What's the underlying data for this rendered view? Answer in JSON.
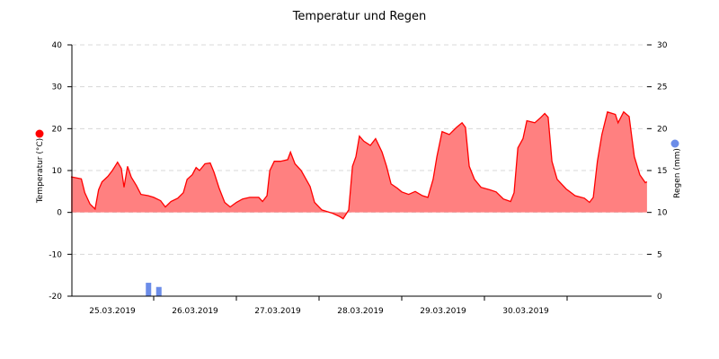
{
  "chart_data": {
    "type": "area",
    "title": "Temperatur und Regen",
    "ylabel": "Temperatur (°C)",
    "y2label": "Regen (mm)",
    "x_unit": "hours since 25.03.2019 00:00",
    "xlim": [
      0,
      167.5
    ],
    "ylim": [
      -20,
      40
    ],
    "y2lim": [
      0,
      30
    ],
    "yticks": [
      "-20",
      "-10",
      "0",
      "10",
      "20",
      "30",
      "40"
    ],
    "y2ticks": [
      "0",
      "5",
      "10",
      "15",
      "20",
      "25",
      "30"
    ],
    "xtick_labels": [
      "25.03.2019",
      "26.03.2019",
      "27.03.2019",
      "28.03.2019",
      "29.03.2019",
      "30.03.2019"
    ],
    "grid": true,
    "colors": {
      "temperature": "#ff0000",
      "temperature_fill": "#ff8080",
      "rain": "#6b8ce8"
    },
    "series": [
      {
        "name": "Temperatur",
        "hours": [
          0,
          3,
          4,
          5.5,
          7,
          8,
          9,
          10.7,
          12,
          13.5,
          14.6,
          15.4,
          16.4,
          17.5,
          19,
          20.3,
          22.4,
          24,
          26,
          27.4,
          29,
          31,
          32.6,
          33.7,
          35.2,
          36.3,
          37.3,
          38.9,
          40.4,
          41.5,
          43,
          44.6,
          46.2,
          48,
          49.8,
          51.9,
          54.5,
          55.6,
          56.9,
          57.7,
          59,
          60.8,
          62.9,
          63.7,
          65,
          66.8,
          69.4,
          70.7,
          72.8,
          75.9,
          78,
          79,
          80.6,
          81.7,
          82.7,
          83.7,
          85,
          86.9,
          88.4,
          90.3,
          91.6,
          92.9,
          94.7,
          96,
          98,
          99.9,
          102,
          103.6,
          105.1,
          106.2,
          107.7,
          109.8,
          111.9,
          113.5,
          114.5,
          115.6,
          117.1,
          119,
          121.6,
          123.4,
          125.5,
          127.6,
          128.6,
          129.7,
          131.2,
          132.3,
          134.6,
          136.4,
          137.5,
          138.5,
          139.6,
          141.1,
          143.7,
          146.3,
          149,
          150.5,
          151.6,
          152.8,
          154.1,
          155.7,
          158,
          158.8,
          160.4,
          162,
          163.5,
          165.1,
          166.7,
          167.2
        ],
        "values": [
          8.5,
          8.0,
          4.7,
          2.0,
          0.8,
          5.4,
          7.3,
          8.6,
          10.0,
          12.0,
          10.5,
          6.0,
          11.0,
          8.4,
          6.4,
          4.3,
          4.0,
          3.6,
          2.8,
          1.3,
          2.6,
          3.4,
          4.7,
          7.9,
          9.0,
          10.7,
          10.0,
          11.6,
          11.8,
          9.6,
          5.8,
          2.4,
          1.3,
          2.4,
          3.2,
          3.6,
          3.6,
          2.6,
          4.0,
          10.0,
          12.2,
          12.2,
          12.6,
          14.4,
          11.6,
          10.0,
          6.2,
          2.4,
          0.6,
          -0.2,
          -1.0,
          -1.5,
          0.6,
          11.0,
          13.3,
          18.2,
          17.0,
          16.0,
          17.6,
          14.4,
          11.0,
          6.8,
          5.8,
          4.9,
          4.3,
          5.0,
          4.0,
          3.6,
          7.9,
          13.3,
          19.3,
          18.6,
          20.3,
          21.4,
          20.3,
          11.0,
          7.9,
          6.0,
          5.4,
          4.9,
          3.2,
          2.6,
          4.7,
          15.4,
          17.6,
          21.9,
          21.4,
          22.7,
          23.6,
          22.7,
          12.2,
          7.9,
          5.6,
          4.0,
          3.4,
          2.4,
          3.6,
          12.2,
          18.6,
          24.0,
          23.4,
          21.4,
          24.0,
          22.9,
          13.3,
          9.0,
          7.1,
          7.3
        ]
      },
      {
        "name": "Regen",
        "type": "bar",
        "hours": [
          22.5,
          25.5
        ],
        "values": [
          1.6,
          1.1
        ]
      }
    ]
  }
}
